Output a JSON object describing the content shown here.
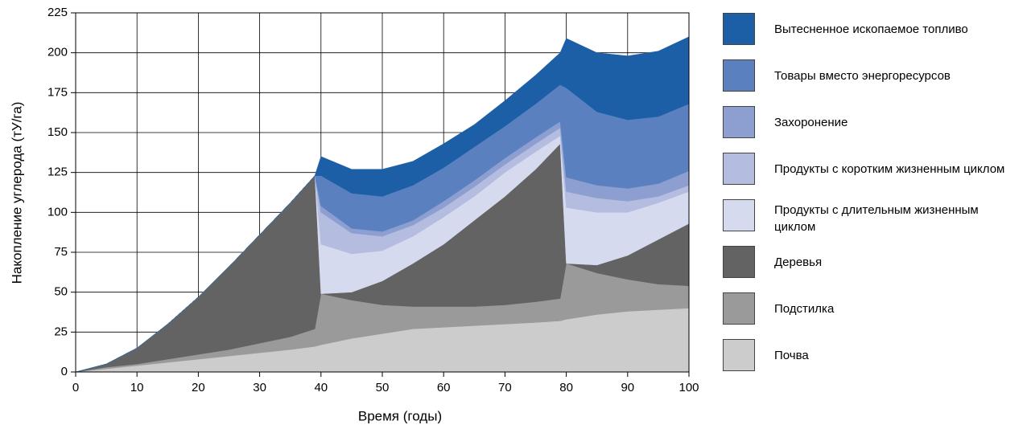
{
  "chart_data": {
    "type": "stacked_area",
    "x_label": "Время (годы)",
    "y_label": "Накопление углерода (тУ/га)",
    "x": [
      0,
      5,
      10,
      15,
      20,
      25,
      30,
      35,
      39,
      40,
      45,
      50,
      55,
      60,
      65,
      70,
      75,
      79,
      80,
      85,
      90,
      95,
      100
    ],
    "xlim": [
      0,
      100
    ],
    "xticks": [
      0,
      10,
      20,
      30,
      40,
      50,
      60,
      70,
      80,
      90,
      100
    ],
    "ylim": [
      0,
      225
    ],
    "yticks": [
      0,
      25,
      50,
      75,
      100,
      125,
      150,
      175,
      200,
      225
    ],
    "grid": true,
    "legend": "right",
    "series": [
      {
        "name": "Почва",
        "color": "#cccccc",
        "values": [
          0,
          2,
          4,
          6,
          8,
          10,
          12,
          14,
          16,
          17,
          21,
          24,
          27,
          28,
          29,
          30,
          31,
          32,
          33,
          36,
          38,
          39,
          40
        ]
      },
      {
        "name": "Подстилка",
        "color": "#9a9a9a",
        "values": [
          0,
          1,
          1,
          2,
          3,
          4,
          6,
          8,
          11,
          32,
          24,
          18,
          14,
          13,
          12,
          12,
          13,
          14,
          35,
          26,
          20,
          16,
          14
        ]
      },
      {
        "name": "Деревья",
        "color": "#636363",
        "values": [
          0,
          2,
          10,
          22,
          36,
          52,
          68,
          84,
          96,
          0,
          5,
          15,
          27,
          39,
          54,
          68,
          83,
          97,
          0,
          5,
          15,
          28,
          39
        ]
      },
      {
        "name": "Продукты с длительным жизненным циклом",
        "color": "#d6daef",
        "values": [
          0,
          0,
          0,
          0,
          0,
          0,
          0,
          0,
          0,
          31,
          24,
          19,
          17,
          17,
          15,
          15,
          11,
          5,
          35,
          33,
          27,
          23,
          20
        ]
      },
      {
        "name": "Продукты с коротким жизненным циклом",
        "color": "#b4bce0",
        "values": [
          0,
          0,
          0,
          0,
          0,
          0,
          0,
          0,
          0,
          20,
          13,
          9,
          7,
          6,
          6,
          5,
          5,
          5,
          10,
          9,
          7,
          4,
          4
        ]
      },
      {
        "name": "Захоронение",
        "color": "#8c9fd0",
        "values": [
          0,
          0,
          0,
          0,
          0,
          0,
          0,
          0,
          0,
          4,
          3,
          3,
          3,
          4,
          4,
          4,
          4,
          4,
          9,
          8,
          8,
          8,
          9
        ]
      },
      {
        "name": "Товары вместо энергоресурсов",
        "color": "#5b80c0",
        "values": [
          0,
          0,
          0,
          0,
          0,
          0,
          0,
          0,
          0,
          19,
          22,
          22,
          22,
          21,
          21,
          20,
          21,
          23,
          56,
          46,
          43,
          42,
          42
        ]
      },
      {
        "name": "Вытесненное ископаемое топливо",
        "color": "#1c5fa7",
        "values": [
          0,
          0,
          0,
          0,
          0,
          0,
          0,
          0,
          0,
          12,
          15,
          17,
          15,
          15,
          14,
          16,
          18,
          20,
          31,
          37,
          40,
          41,
          42
        ]
      }
    ]
  }
}
